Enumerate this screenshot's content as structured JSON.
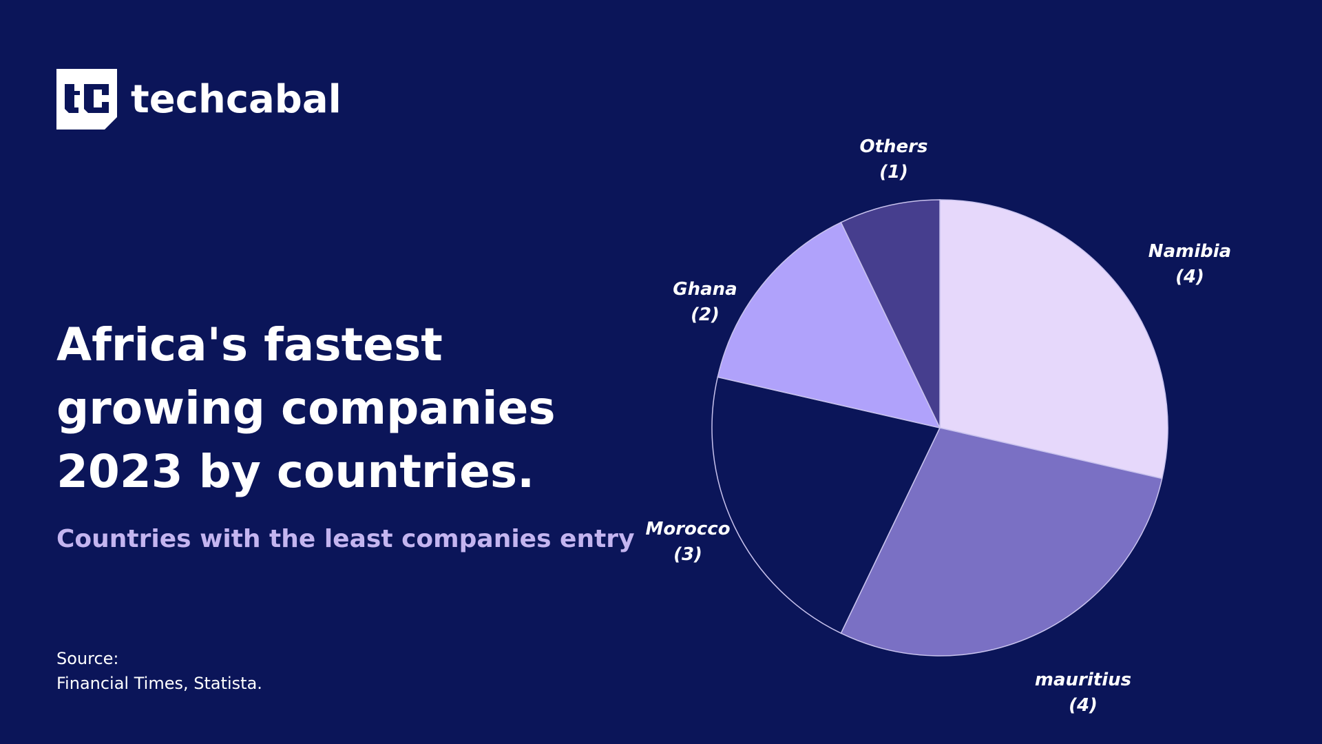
{
  "brand": {
    "name": "techcabal",
    "logo_mark": "tc"
  },
  "title": "Africa's fastest growing companies 2023 by countries.",
  "subtitle": "Countries with the least companies entry",
  "source": {
    "label": "Source:",
    "text": "Financial Times, Statista."
  },
  "chart_data": {
    "type": "pie",
    "start": "top, clockwise",
    "slices": [
      {
        "label": "Namibia",
        "value": 4,
        "display": "(4)",
        "color": "#e6d8fb"
      },
      {
        "label": "mauritius",
        "value": 4,
        "display": "(4)",
        "color": "#7a70c4"
      },
      {
        "label": "Morocco",
        "value": 3,
        "display": "(3)",
        "color": "#0b1559"
      },
      {
        "label": "Ghana",
        "value": 2,
        "display": "(2)",
        "color": "#b0a2fb"
      },
      {
        "label": "Others",
        "value": 1,
        "display": "(1)",
        "color": "#463e8e"
      }
    ]
  },
  "colors": {
    "background": "#0b1559",
    "subtitle": "#c4b5f0",
    "slice_stroke": "#c9c3ee"
  }
}
